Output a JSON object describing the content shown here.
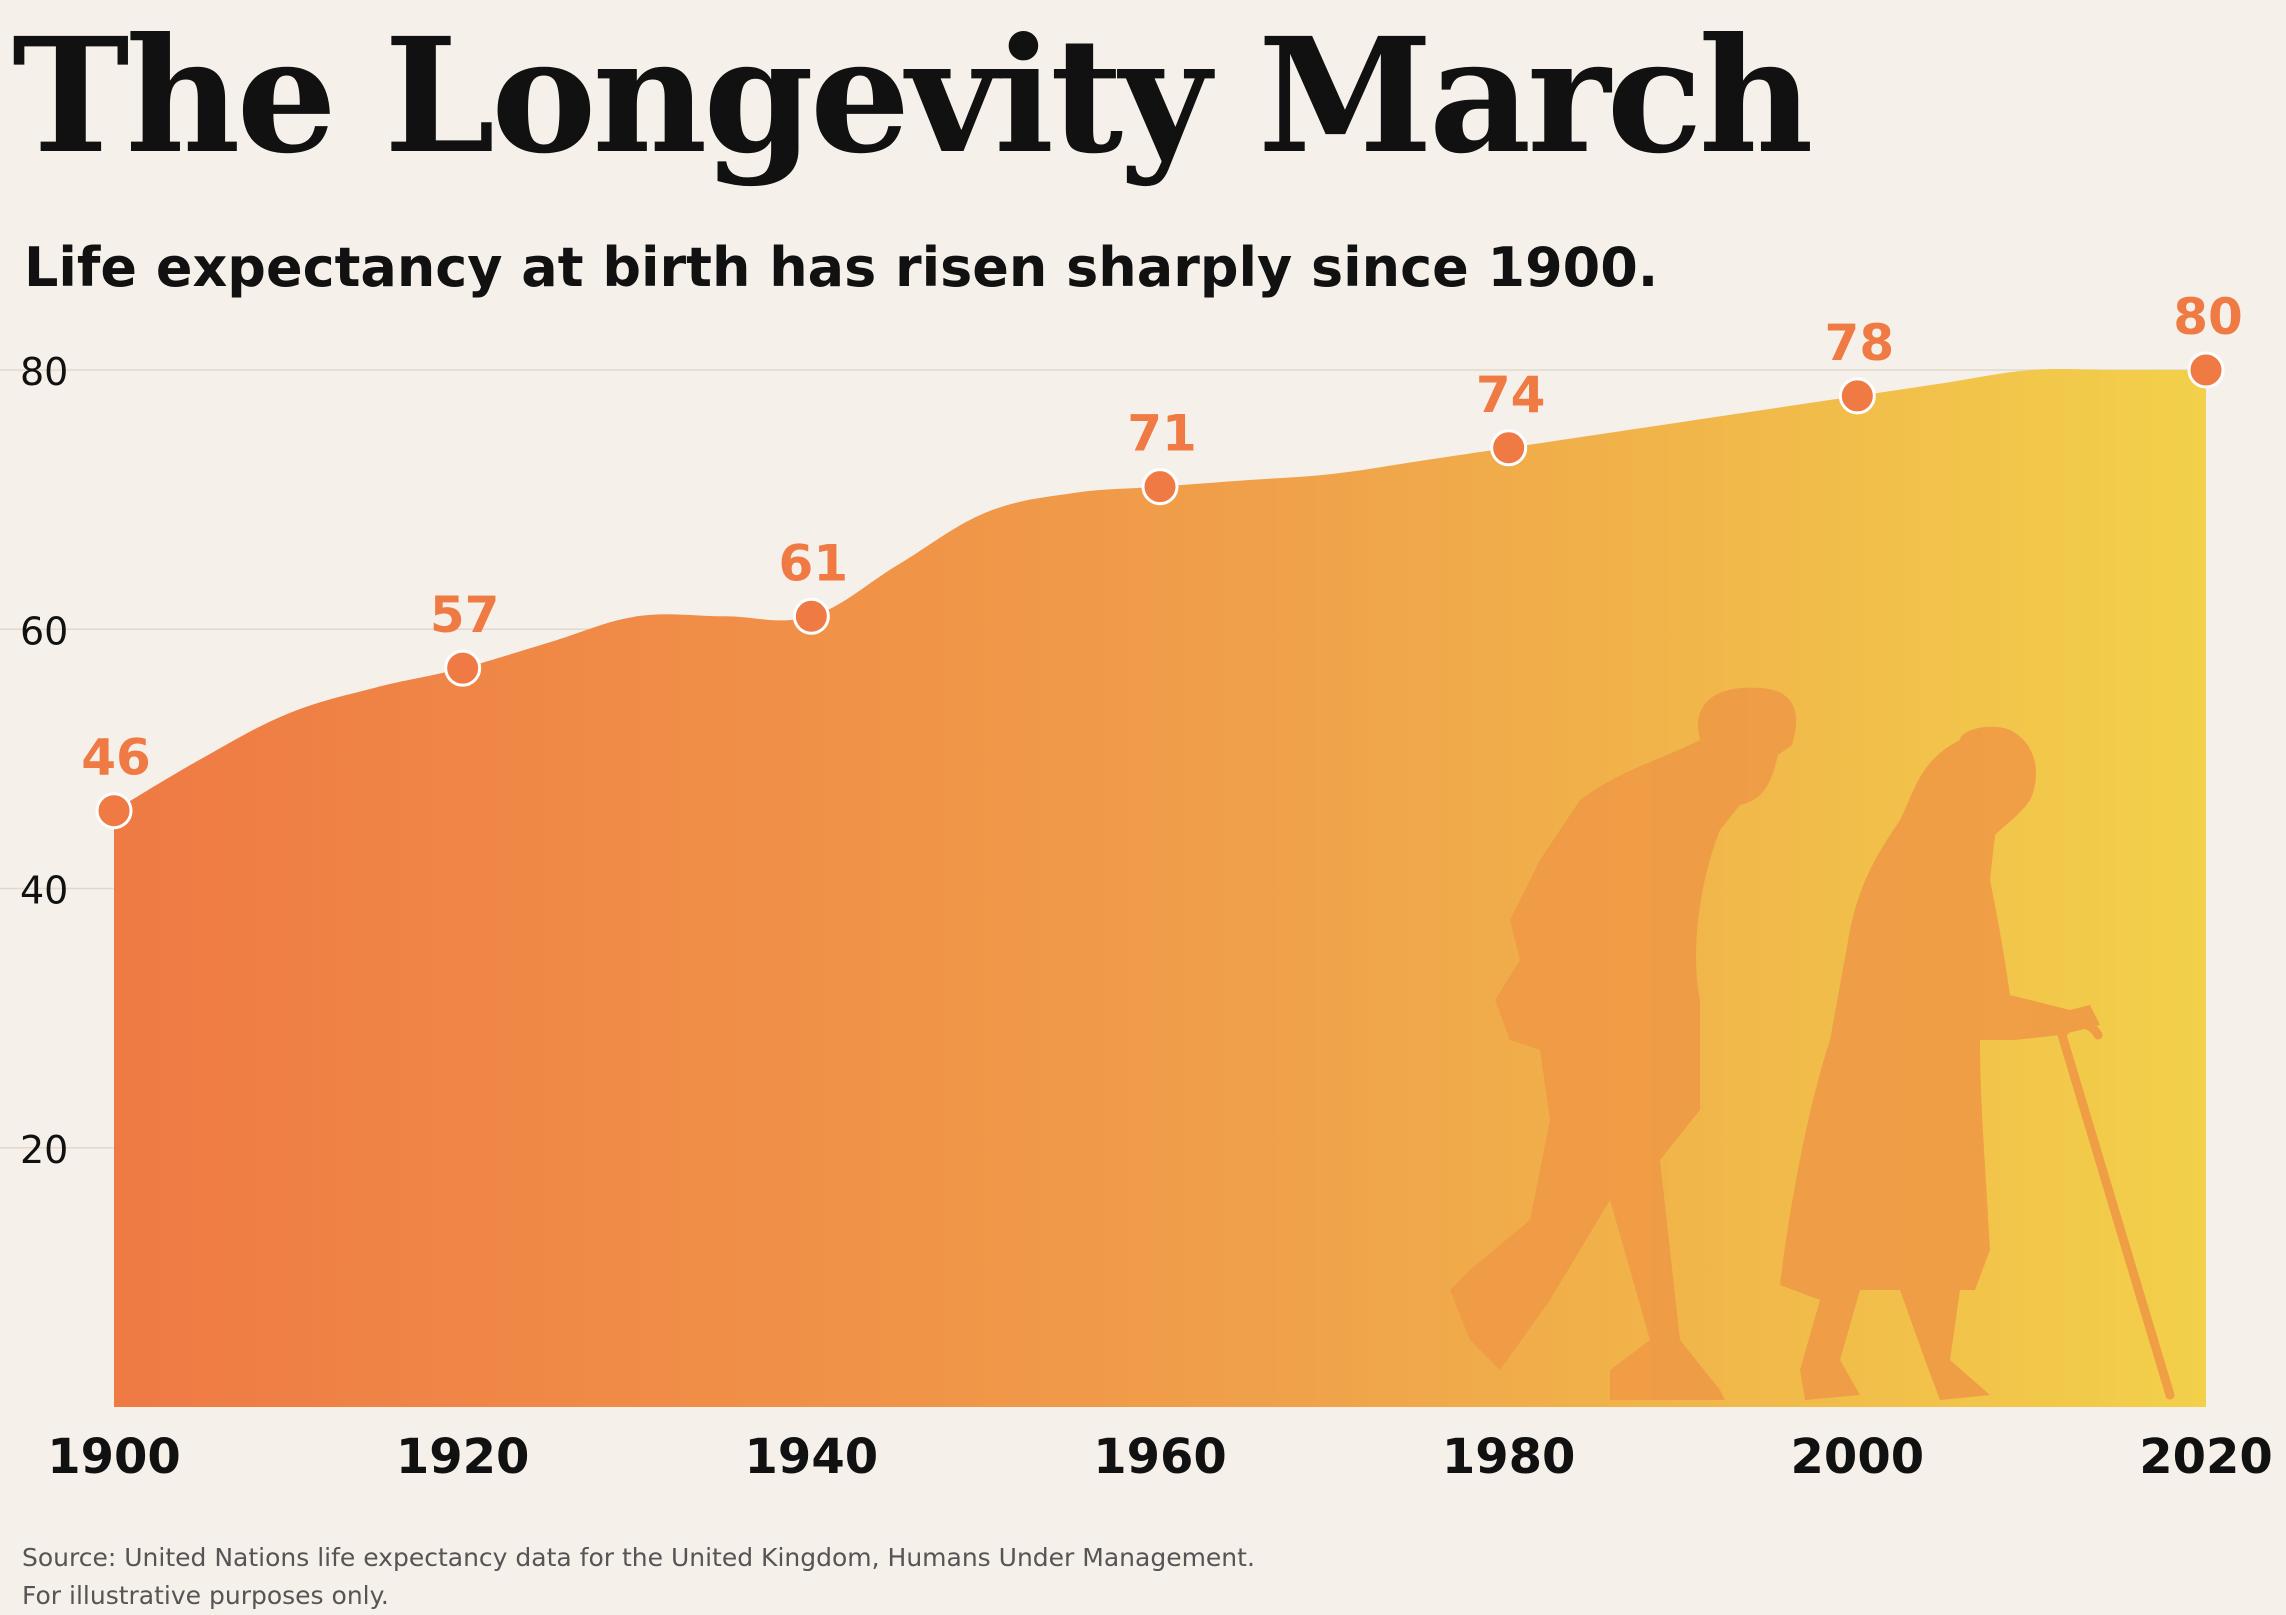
{
  "title": "The Longevity March",
  "subtitle": "Life expectancy at birth has risen sharply since 1900.",
  "source_line1": "Source: United Nations life expectancy data for the United Kingdom, Humans Under Management.",
  "source_line2": "For illustrative purposes only.",
  "colors": {
    "background": "#f5f0e9",
    "area_start": "#ef7a44",
    "area_mid": "#f0a04a",
    "area_end": "#f2d04a",
    "marker": "#ef7a44",
    "label": "#ef7a44",
    "silhouette": "#ef9a46"
  },
  "chart_data": {
    "type": "area",
    "title": "The Longevity March",
    "subtitle": "Life expectancy at birth has risen sharply since 1900.",
    "x": [
      1900,
      1920,
      1940,
      1960,
      1980,
      2000,
      2020
    ],
    "x_tick_labels": [
      "1900",
      "1920",
      "1940",
      "1960",
      "1980",
      "2000",
      "2020"
    ],
    "y_ticks": [
      20,
      40,
      60,
      80
    ],
    "y_tick_labels": [
      "20",
      "40",
      "60",
      "80"
    ],
    "xlim": [
      1900,
      2020
    ],
    "ylim": [
      0,
      80
    ],
    "grid": "horizontal",
    "markers": [
      {
        "x": 1900,
        "y": 46,
        "label": "46"
      },
      {
        "x": 1920,
        "y": 57,
        "label": "57"
      },
      {
        "x": 1940,
        "y": 61,
        "label": "61"
      },
      {
        "x": 1960,
        "y": 71,
        "label": "71"
      },
      {
        "x": 1980,
        "y": 74,
        "label": "74"
      },
      {
        "x": 2000,
        "y": 78,
        "label": "78"
      },
      {
        "x": 2020,
        "y": 80,
        "label": "80"
      }
    ],
    "area_curve": [
      [
        1900,
        46
      ],
      [
        1905,
        50
      ],
      [
        1910,
        53.5
      ],
      [
        1915,
        55.5
      ],
      [
        1920,
        57
      ],
      [
        1925,
        59
      ],
      [
        1930,
        61
      ],
      [
        1935,
        61
      ],
      [
        1940,
        61
      ],
      [
        1945,
        65
      ],
      [
        1950,
        69
      ],
      [
        1955,
        70.5
      ],
      [
        1960,
        71
      ],
      [
        1965,
        71.5
      ],
      [
        1970,
        72
      ],
      [
        1975,
        73
      ],
      [
        1980,
        74
      ],
      [
        1985,
        75
      ],
      [
        1990,
        76
      ],
      [
        1995,
        77
      ],
      [
        2000,
        78
      ],
      [
        2005,
        79
      ],
      [
        2010,
        80
      ],
      [
        2015,
        80
      ],
      [
        2020,
        80
      ]
    ]
  }
}
